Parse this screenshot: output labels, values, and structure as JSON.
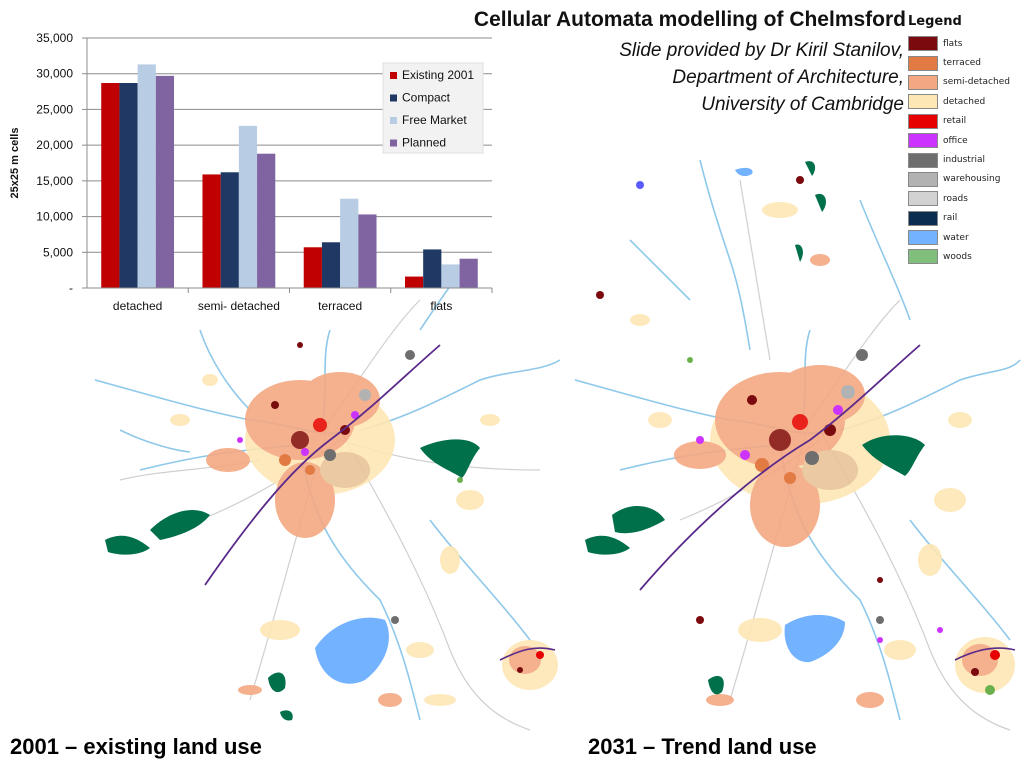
{
  "slide": {
    "title": "Cellular Automata modelling of Chelmsford",
    "credit_lines": [
      "Slide provided by Dr Kiril Stanilov,",
      "Department of Architecture,",
      "University of Cambridge"
    ],
    "map_left_caption": "2001 – existing land use",
    "map_right_caption": "2031 – Trend land use"
  },
  "map_legend": {
    "title": "Legend",
    "items": [
      {
        "label": "flats",
        "color": "#7a0a0e"
      },
      {
        "label": "terraced",
        "color": "#e27a43"
      },
      {
        "label": "semi-detached",
        "color": "#f4a882"
      },
      {
        "label": "detached",
        "color": "#fde7b4"
      },
      {
        "label": "retail",
        "color": "#e60000"
      },
      {
        "label": "office",
        "color": "#cc33ff"
      },
      {
        "label": "industrial",
        "color": "#6e6e6e"
      },
      {
        "label": "warehousing",
        "color": "#b2b2b2"
      },
      {
        "label": "roads",
        "color": "#d2d2d2"
      },
      {
        "label": "rail",
        "color": "#0b2d4f"
      },
      {
        "label": "water",
        "color": "#73b2ff"
      },
      {
        "label": "woods",
        "color": "#7fbf7b"
      }
    ]
  },
  "chart_data": {
    "type": "bar",
    "title": "",
    "xlabel": "",
    "ylabel": "25x25 m cells",
    "categories": [
      "detached",
      "semi- detached",
      "terraced",
      "flats"
    ],
    "series": [
      {
        "name": "Existing 2001",
        "color": "#c00000",
        "values": [
          28700,
          15900,
          5700,
          1600
        ]
      },
      {
        "name": "Compact",
        "color": "#1f3864",
        "values": [
          28700,
          16200,
          6400,
          5400
        ]
      },
      {
        "name": "Free Market",
        "color": "#b8cce4",
        "values": [
          31300,
          22700,
          12500,
          3300
        ]
      },
      {
        "name": "Planned",
        "color": "#8064a2",
        "values": [
          29700,
          18800,
          10300,
          4100
        ]
      }
    ],
    "ylim": [
      0,
      35000
    ],
    "yticks": [
      0,
      5000,
      10000,
      15000,
      20000,
      25000,
      30000,
      35000
    ],
    "ytick_labels": [
      "-",
      "5,000",
      "10,000",
      "15,000",
      "20,000",
      "25,000",
      "30,000",
      "35,000"
    ],
    "grid": true,
    "legend_position": "top-right"
  }
}
